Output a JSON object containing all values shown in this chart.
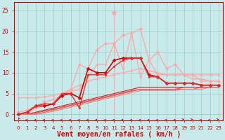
{
  "bg_color": "#c8eaea",
  "grid_color": "#a0c8c8",
  "xlabel": "Vent moyen/en rafales ( km/h )",
  "xlabel_color": "#cc0000",
  "xlabel_fontsize": 7,
  "tick_color": "#cc0000",
  "xlim_min": -0.5,
  "xlim_max": 23.5,
  "ylim_min": -1.5,
  "ylim_max": 27,
  "yticks": [
    0,
    5,
    10,
    15,
    20,
    25
  ],
  "xticks": [
    0,
    1,
    2,
    3,
    4,
    5,
    6,
    7,
    8,
    9,
    10,
    11,
    12,
    13,
    14,
    15,
    16,
    17,
    18,
    19,
    20,
    21,
    22,
    23
  ],
  "series": [
    {
      "x": [
        0,
        1,
        2,
        3,
        4,
        5,
        6,
        7,
        8,
        9,
        10,
        11,
        12,
        13,
        14,
        15,
        16,
        17,
        18,
        19,
        20,
        21,
        22,
        23
      ],
      "y": [
        4.0,
        4.0,
        4.0,
        4.2,
        4.5,
        5.0,
        6.0,
        7.0,
        8.0,
        8.5,
        9.0,
        9.5,
        10.0,
        10.5,
        11.0,
        10.5,
        10.0,
        9.5,
        9.5,
        9.5,
        9.5,
        9.5,
        9.5,
        9.5
      ],
      "color": "#ffaaaa",
      "lw": 1.0,
      "marker": "o",
      "ms": 2.0
    },
    {
      "x": [
        0,
        1,
        2,
        3,
        4,
        5,
        6,
        7,
        8,
        9,
        10,
        11,
        12,
        13,
        14,
        15,
        16,
        17,
        18,
        19,
        20,
        21,
        22,
        23
      ],
      "y": [
        0.0,
        0.3,
        1.5,
        2.0,
        2.5,
        4.5,
        5.5,
        6.0,
        9.0,
        12.0,
        12.0,
        17.0,
        11.0,
        19.5,
        9.0,
        13.0,
        9.5,
        9.5,
        9.5,
        9.5,
        8.5,
        8.5,
        8.0,
        8.0
      ],
      "color": "#ffaaaa",
      "lw": 1.0,
      "marker": "o",
      "ms": 2.0
    },
    {
      "x": [
        0,
        1,
        2,
        3,
        4,
        5,
        6,
        7,
        8,
        9,
        10,
        11,
        12,
        13,
        14,
        15,
        16,
        17,
        18,
        19,
        20,
        21,
        22,
        23
      ],
      "y": [
        0.0,
        0.5,
        2.0,
        2.0,
        2.5,
        4.5,
        5.0,
        4.0,
        11.0,
        10.0,
        10.0,
        13.0,
        13.5,
        13.5,
        13.5,
        9.5,
        9.0,
        7.5,
        7.5,
        7.5,
        7.5,
        7.0,
        7.0,
        7.0
      ],
      "color": "#cc0000",
      "lw": 1.2,
      "marker": "D",
      "ms": 2.5
    },
    {
      "x": [
        0,
        1,
        2,
        3,
        4,
        5,
        6,
        7,
        8,
        9,
        10,
        11,
        12,
        13,
        14,
        15,
        16,
        17,
        18,
        19,
        20,
        21,
        22,
        23
      ],
      "y": [
        0.0,
        0.5,
        2.0,
        2.5,
        2.5,
        5.0,
        5.0,
        1.5,
        9.5,
        9.5,
        9.5,
        11.5,
        13.0,
        13.5,
        13.5,
        9.0,
        9.0,
        7.5,
        7.5,
        7.5,
        7.5,
        7.0,
        7.0,
        7.0
      ],
      "color": "#dd3333",
      "lw": 1.0,
      "marker": "o",
      "ms": 2.0
    },
    {
      "x": [
        0,
        1,
        2,
        3,
        4,
        5,
        6,
        7,
        8,
        9,
        10,
        11,
        12,
        13,
        14,
        15,
        16,
        17,
        18,
        19,
        20,
        21,
        22,
        23
      ],
      "y": [
        0.0,
        0.0,
        0.5,
        1.0,
        1.5,
        2.0,
        2.5,
        3.0,
        3.5,
        4.0,
        4.5,
        5.0,
        5.5,
        6.0,
        6.5,
        6.5,
        6.5,
        6.5,
        6.5,
        6.5,
        6.5,
        6.5,
        6.5,
        6.5
      ],
      "color": "#cc2222",
      "lw": 0.8,
      "marker": null,
      "ms": 0
    },
    {
      "x": [
        0,
        1,
        2,
        3,
        4,
        5,
        6,
        7,
        8,
        9,
        10,
        11,
        12,
        13,
        14,
        15,
        16,
        17,
        18,
        19,
        20,
        21,
        22,
        23
      ],
      "y": [
        0.0,
        0.0,
        0.3,
        0.8,
        1.2,
        1.7,
        2.2,
        2.7,
        3.2,
        3.7,
        4.2,
        4.7,
        5.2,
        5.7,
        6.0,
        6.0,
        6.0,
        6.0,
        6.0,
        6.5,
        6.5,
        6.5,
        6.5,
        6.5
      ],
      "color": "#dd4444",
      "lw": 0.8,
      "marker": null,
      "ms": 0
    },
    {
      "x": [
        0,
        1,
        2,
        3,
        4,
        5,
        6,
        7,
        8,
        9,
        10,
        11,
        12,
        13,
        14,
        15,
        16,
        17,
        18,
        19,
        20,
        21,
        22,
        23
      ],
      "y": [
        0.0,
        0.0,
        0.0,
        0.5,
        1.0,
        1.5,
        2.0,
        2.5,
        3.0,
        3.5,
        4.0,
        4.5,
        5.0,
        5.5,
        6.0,
        6.0,
        6.0,
        6.0,
        6.0,
        6.0,
        6.0,
        6.5,
        6.5,
        6.5
      ],
      "color": "#ee5555",
      "lw": 0.7,
      "marker": null,
      "ms": 0
    },
    {
      "x": [
        0,
        1,
        2,
        3,
        4,
        5,
        6,
        7,
        8,
        9,
        10,
        11,
        12,
        13,
        14,
        15,
        16,
        17,
        18,
        19,
        20,
        21,
        22,
        23
      ],
      "y": [
        0.0,
        0.0,
        0.0,
        0.3,
        0.7,
        1.2,
        1.7,
        2.2,
        2.7,
        3.2,
        3.7,
        4.2,
        4.7,
        5.2,
        5.7,
        5.7,
        5.7,
        5.7,
        5.7,
        6.0,
        6.0,
        6.0,
        6.5,
        6.5
      ],
      "color": "#ff7777",
      "lw": 0.7,
      "marker": null,
      "ms": 0
    },
    {
      "x": [
        11
      ],
      "y": [
        24.5
      ],
      "color": "#ffaaaa",
      "lw": 0,
      "marker": "*",
      "ms": 5
    }
  ],
  "peak_line_x": [
    11,
    11
  ],
  "peak_line_y": [
    0,
    24.5
  ],
  "light_series_x": [
    0,
    1,
    2,
    3,
    4,
    5,
    6,
    7,
    8,
    9,
    10,
    11,
    12,
    13,
    14,
    15,
    16,
    17,
    18,
    19,
    20,
    21,
    22,
    23
  ],
  "light_series_y": [
    0.5,
    1.0,
    2.0,
    3.0,
    3.5,
    4.5,
    6.0,
    12.0,
    11.0,
    15.5,
    17.0,
    17.0,
    19.0,
    19.5,
    20.5,
    13.0,
    15.0,
    11.0,
    12.0,
    9.5,
    9.5,
    8.0,
    8.0,
    8.0
  ]
}
